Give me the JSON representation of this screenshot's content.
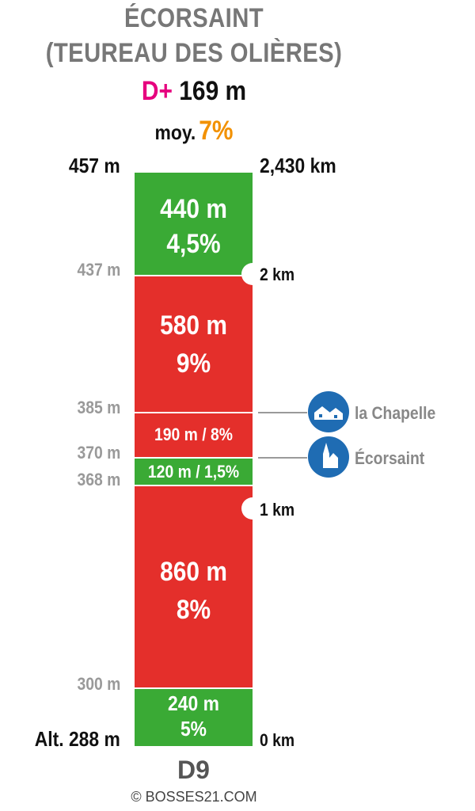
{
  "header": {
    "title_line1": "ÉCORSAINT",
    "title_line2": "(TEUREAU DES OLIÈRES)",
    "dplus_label": "D+",
    "dplus_value": "169 m",
    "avg_label": "moy.",
    "avg_value": "7%"
  },
  "top_altitude": "457 m",
  "top_distance": "2,430 km",
  "segments": [
    {
      "length": "440 m",
      "grade": "4,5%",
      "color": "green"
    },
    {
      "length": "580 m",
      "grade": "9%",
      "color": "red"
    },
    {
      "label": "190 m / 8%",
      "color": "red"
    },
    {
      "label": "120 m / 1,5%",
      "color": "green"
    },
    {
      "length": "860 m",
      "grade": "8%",
      "color": "red"
    },
    {
      "length": "240 m",
      "grade": "5%",
      "color": "green"
    }
  ],
  "altitudes": [
    "437 m",
    "385 m",
    "370 m",
    "368 m",
    "300 m",
    "Alt. 288 m"
  ],
  "km_markers": [
    "2 km",
    "1 km",
    "0 km"
  ],
  "pois": [
    {
      "name": "la Chapelle",
      "icon": "houses-icon"
    },
    {
      "name": "Écorsaint",
      "icon": "church-icon"
    }
  ],
  "road": "D9",
  "copyright": "© BOSSES21.COM",
  "colors": {
    "green": "#3aaa35",
    "red": "#e42f2b",
    "magenta": "#e6007e",
    "orange": "#f29100",
    "poi_blue": "#1f6cb3"
  }
}
